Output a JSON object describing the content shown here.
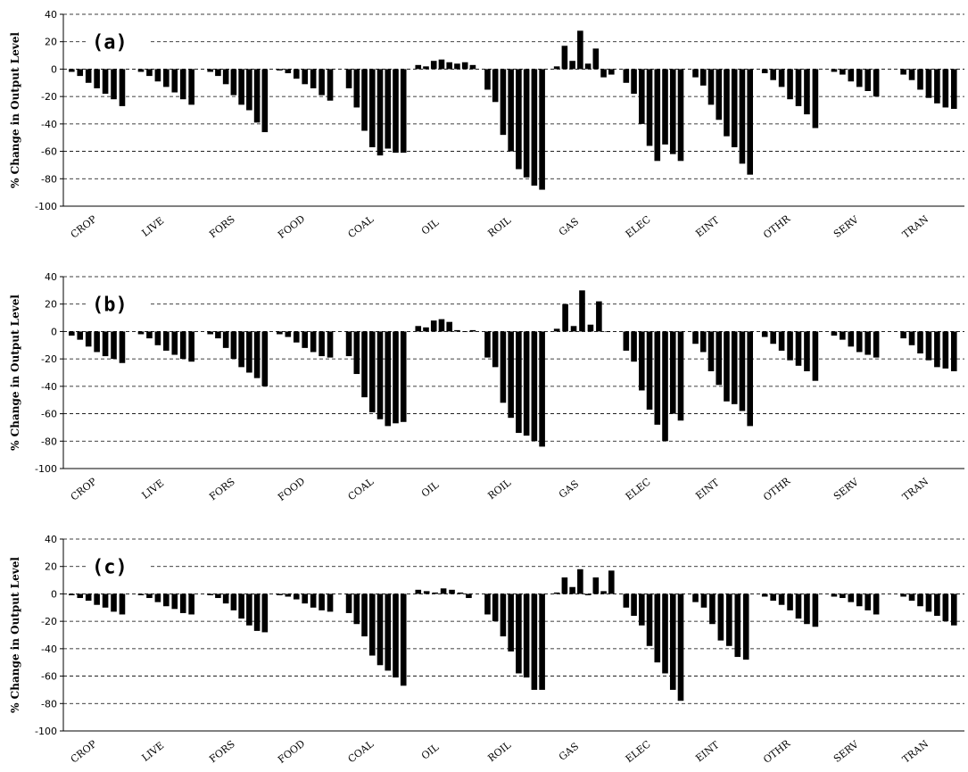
{
  "chart_data": [
    {
      "type": "bar",
      "panel_label": "(a)",
      "ylabel": "% Change in Output Level",
      "ylim": [
        -100,
        40
      ],
      "yticks": [
        40,
        20,
        0,
        -20,
        -40,
        -60,
        -80,
        -100
      ],
      "grid": "dashed horizontal",
      "categories": [
        "CROP",
        "LIVE",
        "FORS",
        "FOOD",
        "COAL",
        "OIL",
        "ROIL",
        "GAS",
        "ELEC",
        "EINT",
        "OTHR",
        "SERV",
        "TRAN"
      ],
      "groups": [
        [
          -2,
          -5,
          -10,
          -14,
          -18,
          -22,
          -27
        ],
        [
          -2,
          -5,
          -9,
          -13,
          -17,
          -22,
          -26
        ],
        [
          -2,
          -5,
          -11,
          -19,
          -26,
          -30,
          -39,
          -46
        ],
        [
          -1,
          -3,
          -7,
          -11,
          -14,
          -19,
          -23
        ],
        [
          -14,
          -28,
          -45,
          -57,
          -63,
          -58,
          -61,
          -61
        ],
        [
          3,
          2,
          6,
          7,
          5,
          4,
          5,
          3
        ],
        [
          -15,
          -24,
          -48,
          -60,
          -73,
          -79,
          -85,
          -88
        ],
        [
          2,
          17,
          6,
          28,
          4,
          15,
          -6,
          -4
        ],
        [
          -10,
          -18,
          -40,
          -56,
          -67,
          -55,
          -62,
          -67
        ],
        [
          -6,
          -12,
          -26,
          -37,
          -49,
          -57,
          -69,
          -77
        ],
        [
          -3,
          -8,
          -13,
          -22,
          -27,
          -33,
          -43
        ],
        [
          -2,
          -4,
          -9,
          -13,
          -16,
          -20
        ],
        [
          -4,
          -8,
          -15,
          -21,
          -25,
          -28,
          -29
        ]
      ]
    },
    {
      "type": "bar",
      "panel_label": "(b)",
      "ylabel": "% Change in Output Level",
      "ylim": [
        -100,
        40
      ],
      "yticks": [
        40,
        20,
        0,
        -20,
        -40,
        -60,
        -80,
        -100
      ],
      "grid": "dashed horizontal",
      "categories": [
        "CROP",
        "LIVE",
        "FORS",
        "FOOD",
        "COAL",
        "OIL",
        "ROIL",
        "GAS",
        "ELEC",
        "EINT",
        "OTHR",
        "SERV",
        "TRAN"
      ],
      "groups": [
        [
          -3,
          -6,
          -11,
          -15,
          -18,
          -20,
          -23
        ],
        [
          -2,
          -5,
          -10,
          -14,
          -17,
          -20,
          -22
        ],
        [
          -2,
          -5,
          -12,
          -20,
          -26,
          -30,
          -34,
          -40
        ],
        [
          -2,
          -4,
          -8,
          -12,
          -15,
          -18,
          -19
        ],
        [
          -18,
          -31,
          -48,
          -59,
          -64,
          -69,
          -67,
          -66
        ],
        [
          4,
          3,
          8,
          9,
          7,
          1,
          0,
          1
        ],
        [
          -19,
          -26,
          -52,
          -63,
          -74,
          -76,
          -80,
          -84
        ],
        [
          2,
          20,
          4,
          30,
          5,
          22,
          0
        ],
        [
          -14,
          -22,
          -43,
          -57,
          -68,
          -80,
          -60,
          -65
        ],
        [
          -9,
          -15,
          -29,
          -39,
          -51,
          -53,
          -58,
          -69
        ],
        [
          -4,
          -9,
          -14,
          -21,
          -25,
          -29,
          -36
        ],
        [
          -3,
          -6,
          -11,
          -15,
          -17,
          -19
        ],
        [
          -5,
          -10,
          -16,
          -21,
          -26,
          -27,
          -29
        ]
      ]
    },
    {
      "type": "bar",
      "panel_label": "(c)",
      "ylabel": "% Change in Output Level",
      "ylim": [
        -100,
        40
      ],
      "yticks": [
        40,
        20,
        0,
        -20,
        -40,
        -60,
        -80,
        -100
      ],
      "grid": "dashed horizontal",
      "categories": [
        "CROP",
        "LIVE",
        "FORS",
        "FOOD",
        "COAL",
        "OIL",
        "ROIL",
        "GAS",
        "ELEC",
        "EINT",
        "OTHR",
        "SERV",
        "TRAN"
      ],
      "groups": [
        [
          -1,
          -3,
          -5,
          -8,
          -10,
          -13,
          -15
        ],
        [
          -1,
          -3,
          -6,
          -9,
          -11,
          -14,
          -15
        ],
        [
          -1,
          -3,
          -7,
          -12,
          -18,
          -23,
          -27,
          -28
        ],
        [
          -1,
          -2,
          -4,
          -7,
          -10,
          -12,
          -13
        ],
        [
          -14,
          -22,
          -31,
          -45,
          -52,
          -56,
          -61,
          -67
        ],
        [
          3,
          2,
          1,
          4,
          3,
          1,
          -3
        ],
        [
          -15,
          -20,
          -31,
          -42,
          -58,
          -61,
          -70,
          -70
        ],
        [
          1,
          12,
          5,
          18,
          -1,
          12,
          2,
          17
        ],
        [
          -10,
          -16,
          -23,
          -38,
          -50,
          -58,
          -70,
          -78
        ],
        [
          -6,
          -10,
          -22,
          -34,
          -38,
          -46,
          -48
        ],
        [
          -2,
          -5,
          -8,
          -12,
          -18,
          -22,
          -24
        ],
        [
          -2,
          -3,
          -6,
          -9,
          -12,
          -15
        ],
        [
          -2,
          -5,
          -9,
          -13,
          -16,
          -20,
          -23
        ]
      ]
    }
  ]
}
